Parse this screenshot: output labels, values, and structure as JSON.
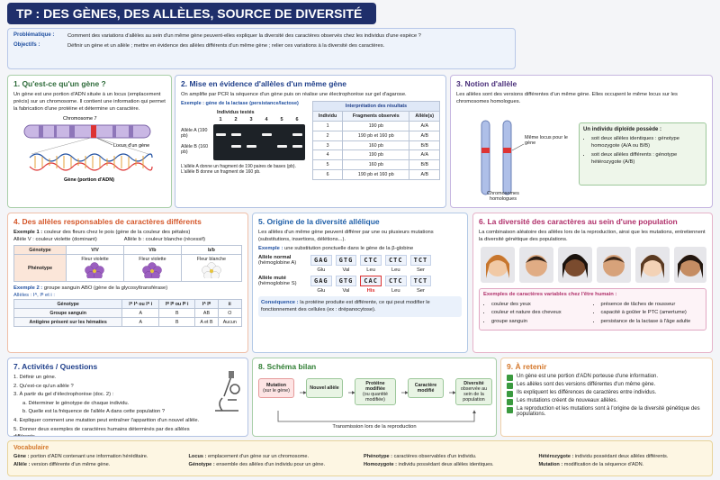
{
  "title": "TP : DES GÈNES, DES ALLÈLES, SOURCE DE DIVERSITÉ",
  "intro": {
    "problem_label": "Problématique :",
    "problem": "Comment des variations d'allèles au sein d'un même gène peuvent-elles expliquer la diversité des caractères observés chez les individus d'une espèce ?",
    "objectives_label": "Objectifs :",
    "objectives": "Définir un gène et un allèle ; mettre en évidence des allèles différents d'un même gène ; relier ces variations à la diversité des caractères."
  },
  "s1": {
    "title": "1. Qu'est-ce qu'un gène ?",
    "text": "Un gène est une portion d'ADN située à un locus (emplacement précis) sur un chromosome. Il contient une information qui permet la fabrication d'une protéine et détermine un caractère.",
    "chromosome": "Chromosome 7",
    "locus": "Locus d'un gène",
    "gene": "Gène (portion d'ADN)"
  },
  "s2": {
    "title": "2. Mise en évidence d'allèles d'un même gène",
    "text": "On amplifie par PCR la séquence d'un gène puis on réalise une électrophorèse sur gel d'agarose.",
    "example": "Exemple : gène de la lactase (persistance/lactose)",
    "gel_title": "Individus testés",
    "lanes": [
      "1",
      "2",
      "3",
      "4",
      "5",
      "6"
    ],
    "allele_a": "Allèle A (190 pb)",
    "allele_b": "Allèle B (160 pb)",
    "note": "L'allèle A donne un fragment de 190 paires de bases (pb). L'allèle B donne un fragment de 160 pb.",
    "table": {
      "title": "Interprétation des résultats",
      "header": [
        "Individu",
        "Fragments observés",
        "Allèle(s)"
      ],
      "rows": [
        [
          "1",
          "190 pb",
          "A/A"
        ],
        [
          "2",
          "190 pb et 160 pb",
          "A/B"
        ],
        [
          "3",
          "160 pb",
          "B/B"
        ],
        [
          "4",
          "190 pb",
          "A/A"
        ],
        [
          "5",
          "160 pb",
          "B/B"
        ],
        [
          "6",
          "190 pb et 160 pb",
          "A/B"
        ]
      ]
    }
  },
  "s3": {
    "title": "3. Notion d'allèle",
    "text": "Les allèles sont des versions différentes d'un même gène. Elles occupent le même locus sur les chromosomes homologues.",
    "locus": "Même locus pour le gène",
    "homologues": "Chromosomes homologues",
    "box_title": "Un individu diploïde possède :",
    "items": [
      "soit deux allèles identiques : génotype homozygote (A/A ou B/B)",
      "soit deux allèles différents : génotype hétérozygote (A/B)"
    ]
  },
  "s4": {
    "title": "4. Des allèles responsables de caractères différents",
    "ex1_label": "Exemple 1 :",
    "ex1": "couleur des fleurs chez le pois (gène de la couleur des pétales)",
    "allele_v": "Allèle V : couleur violette (dominant)",
    "allele_b": "Allèle b : couleur blanche (récessif)",
    "table1": {
      "header": [
        "Génotype",
        "V/V",
        "V/b",
        "b/b"
      ],
      "row": [
        "Phénotype",
        "Fleur violette",
        "Fleur violette",
        "Fleur blanche"
      ]
    },
    "ex2_label": "Exemple 2 :",
    "ex2": "groupe sanguin ABO (gène de la glycosyltransférase)",
    "alleles2": "Allèles : Iᴬ, Iᴮ et i :",
    "table2": {
      "header": [
        "Génotype",
        "Iᴬ Iᴬ ou Iᴬ i",
        "Iᴮ Iᴮ ou Iᴮ i",
        "Iᴬ Iᴮ",
        "ii"
      ],
      "rows": [
        [
          "Groupe sanguin",
          "A",
          "B",
          "AB",
          "O"
        ],
        [
          "Antigène présent sur les hématies",
          "A",
          "B",
          "A et B",
          "Aucun"
        ]
      ]
    }
  },
  "s5": {
    "title": "5. Origine de la diversité allélique",
    "text": "Les allèles d'un même gène peuvent différer par une ou plusieurs mutations (substitutions, insertions, délétions...).",
    "example_label": "Exemple :",
    "example": "une substitution ponctuelle dans le gène de la β-globine",
    "normal": {
      "label": "Allèle normal",
      "sub": "(hémoglobine A)",
      "codons": [
        "GAG",
        "GTG",
        "CTC",
        "CTC",
        "TCT"
      ],
      "aa": [
        "Glu",
        "Val",
        "Leu",
        "Leu",
        "Ser"
      ]
    },
    "mutated": {
      "label": "Allèle muté",
      "sub": "(hémoglobine S)",
      "codons": [
        "GAG",
        "GTG",
        "CAC",
        "CTC",
        "TCT"
      ],
      "aa": [
        "Glu",
        "Val",
        "His",
        "Leu",
        "Ser"
      ]
    },
    "consequence_label": "Conséquence :",
    "consequence": "la protéine produite est différente, ce qui peut modifier le fonctionnement des cellules (ex : drépanocytose)."
  },
  "s6": {
    "title": "6. La diversité des caractères au sein d'une population",
    "text": "La combinaison aléatoire des allèles lors de la reproduction, ainsi que les mutations, entretiennent la diversité génétique des populations.",
    "box_title": "Exemples de caractères variables chez l'être humain :",
    "col1": [
      "couleur des yeux",
      "couleur et nature des cheveux",
      "groupe sanguin"
    ],
    "col2": [
      "présence de tâches de rousseur",
      "capacité à goûter le PTC (amertume)",
      "persistance de la lactase à l'âge adulte"
    ]
  },
  "s7": {
    "title": "7. Activités / Questions",
    "items": [
      "1. Définir un gène.",
      "2. Qu'est-ce qu'un allèle ?",
      "3. À partir du gel d'électrophorèse (doc. 2) :",
      "a. Déterminer le génotype de chaque individu.",
      "b. Quelle est la fréquence de l'allèle A dans cette population ?",
      "4. Expliquer comment une mutation peut entraîner l'apparition d'un nouvel allèle.",
      "5. Donner deux exemples de caractères humains déterminés par des allèles différents."
    ]
  },
  "s8": {
    "title": "8. Schéma bilan",
    "boxes": [
      {
        "title": "Mutation",
        "sub": "(sur le gène)"
      },
      {
        "title": "Nouvel allèle"
      },
      {
        "title": "Protéine modifiée",
        "sub": "(ou quantité modifiée)"
      },
      {
        "title": "Caractère modifié"
      },
      {
        "title": "Diversité",
        "sub": "observée au sein de la population"
      }
    ],
    "footer": "Transmission lors de la reproduction"
  },
  "s9": {
    "title": "9. À retenir",
    "items": [
      "Un gène est une portion d'ADN porteuse d'une information.",
      "Les allèles sont des versions différentes d'un même gène.",
      "Ils expliquent les différences de caractères entre individus.",
      "Les mutations créent de nouveaux allèles.",
      "La reproduction et les mutations sont à l'origine de la diversité génétique des populations."
    ]
  },
  "vocab": {
    "title": "Vocabulaire",
    "items": [
      {
        "term": "Gène :",
        "def": "portion d'ADN contenant une information héréditaire."
      },
      {
        "term": "Allèle :",
        "def": "version différente d'un même gène."
      },
      {
        "term": "Locus :",
        "def": "emplacement d'un gène sur un chromosome."
      },
      {
        "term": "Génotype :",
        "def": "ensemble des allèles d'un individu pour un gène."
      },
      {
        "term": "Phénotype :",
        "def": "caractères observables d'un individu."
      },
      {
        "term": "Homozygote :",
        "def": "individu possédant deux allèles identiques."
      },
      {
        "term": "Hétérozygote :",
        "def": "individu possédant deux allèles différents."
      },
      {
        "term": "Mutation :",
        "def": "modification de la séquence d'ADN."
      }
    ]
  }
}
